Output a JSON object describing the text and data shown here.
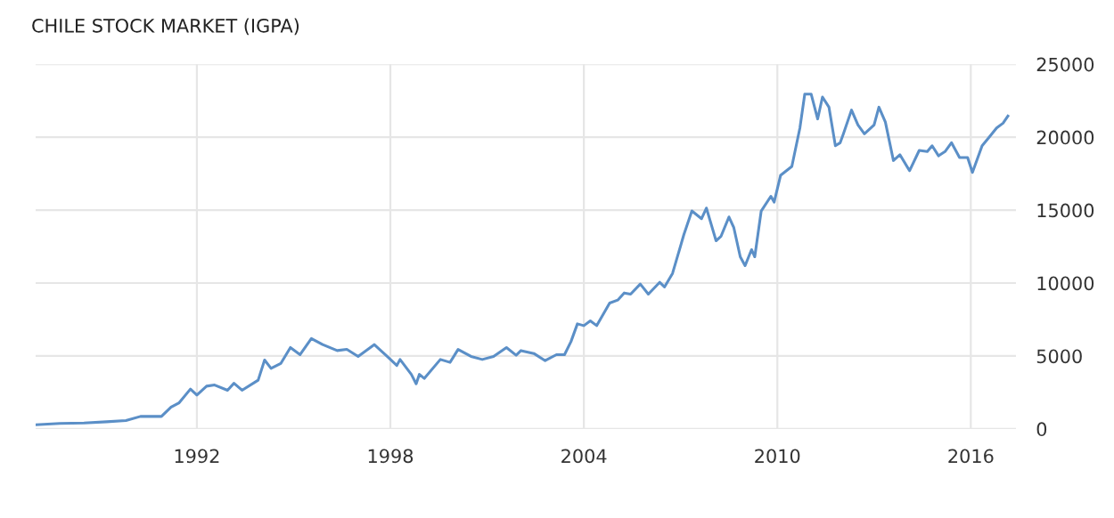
{
  "chart_data": {
    "type": "line",
    "title": "CHILE STOCK MARKET (IGPA)",
    "x": [
      1987.0,
      1987.75,
      1988.5,
      1989.2,
      1989.8,
      1990.25,
      1990.9,
      1991.2,
      1991.45,
      1991.8,
      1992.0,
      1992.3,
      1992.55,
      1992.95,
      1993.15,
      1993.4,
      1993.9,
      1994.1,
      1994.3,
      1994.6,
      1994.9,
      1995.2,
      1995.55,
      1995.9,
      1996.35,
      1996.65,
      1997.0,
      1997.5,
      1997.9,
      1998.2,
      1998.3,
      1998.65,
      1998.8,
      1998.9,
      1999.05,
      1999.55,
      1999.85,
      2000.1,
      2000.5,
      2000.85,
      2001.2,
      2001.6,
      2001.9,
      2002.05,
      2002.45,
      2002.8,
      2003.15,
      2003.4,
      2003.6,
      2003.8,
      2004.0,
      2004.2,
      2004.4,
      2004.8,
      2005.05,
      2005.25,
      2005.45,
      2005.75,
      2006.0,
      2006.35,
      2006.5,
      2006.75,
      2007.1,
      2007.35,
      2007.65,
      2007.8,
      2008.1,
      2008.25,
      2008.5,
      2008.65,
      2008.85,
      2009.0,
      2009.2,
      2009.3,
      2009.5,
      2009.8,
      2009.9,
      2010.1,
      2010.45,
      2010.7,
      2010.85,
      2011.05,
      2011.25,
      2011.4,
      2011.6,
      2011.8,
      2011.95,
      2012.05,
      2012.3,
      2012.5,
      2012.7,
      2013.0,
      2013.15,
      2013.35,
      2013.6,
      2013.8,
      2014.1,
      2014.4,
      2014.65,
      2014.8,
      2015.0,
      2015.2,
      2015.4,
      2015.65,
      2015.9,
      2016.05,
      2016.35,
      2016.55,
      2016.8,
      2017.0,
      2017.15
    ],
    "series": [
      {
        "color": "#5b8fc7",
        "values": [
          285,
          370,
          410,
          490,
          570,
          855,
          855,
          1500,
          1790,
          2730,
          2320,
          2930,
          3010,
          2650,
          3130,
          2650,
          3340,
          4720,
          4150,
          4480,
          5580,
          5090,
          6190,
          5780,
          5370,
          5450,
          4970,
          5780,
          4970,
          4350,
          4760,
          3740,
          3090,
          3740,
          3460,
          4760,
          4560,
          5450,
          4970,
          4760,
          4970,
          5580,
          5050,
          5370,
          5170,
          4680,
          5090,
          5090,
          5980,
          7200,
          7080,
          7410,
          7080,
          8630,
          8830,
          9320,
          9240,
          9930,
          9240,
          10050,
          9730,
          10660,
          13310,
          14940,
          14410,
          15140,
          12900,
          13190,
          14530,
          13800,
          11800,
          11190,
          12290,
          11800,
          14940,
          15950,
          15550,
          17380,
          17990,
          20630,
          22950,
          22950,
          21250,
          22750,
          22060,
          19410,
          19620,
          20230,
          21860,
          20840,
          20230,
          20840,
          22060,
          21040,
          18400,
          18800,
          17700,
          19090,
          19010,
          19410,
          18720,
          19010,
          19620,
          18600,
          18600,
          17580,
          19410,
          19940,
          20630,
          20960,
          21450
        ]
      }
    ],
    "xlim": [
      1987.0,
      2017.4
    ],
    "xticks": [
      1992,
      1998,
      2004,
      2010,
      2016
    ],
    "ylim": [
      0,
      25000
    ],
    "yticks": [
      0,
      5000,
      10000,
      15000,
      20000,
      25000
    ],
    "grid": true,
    "legend": false
  }
}
